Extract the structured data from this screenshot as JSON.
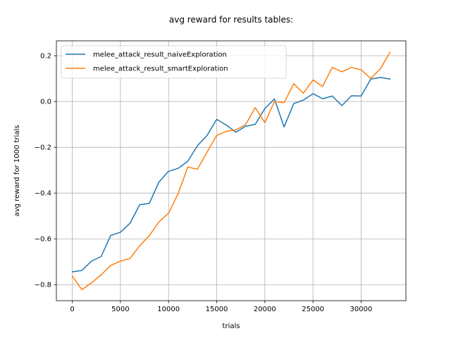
{
  "chart_data": {
    "type": "line",
    "title": "avg reward for results tables:",
    "xlabel": "trials",
    "ylabel": "avg reward for 1000 trials",
    "xlim": [
      -1650,
      34650
    ],
    "ylim": [
      -0.87,
      0.265
    ],
    "xticks": [
      0,
      5000,
      10000,
      15000,
      20000,
      25000,
      30000
    ],
    "xtick_labels": [
      "0",
      "5000",
      "10000",
      "15000",
      "20000",
      "25000",
      "30000"
    ],
    "yticks": [
      -0.8,
      -0.6,
      -0.4,
      -0.2,
      0.0,
      0.2
    ],
    "ytick_labels": [
      "−0.8",
      "−0.6",
      "−0.4",
      "−0.2",
      "0.0",
      "0.2"
    ],
    "grid": true,
    "legend_position": "top-left",
    "x": [
      0,
      1000,
      2000,
      3000,
      4000,
      5000,
      6000,
      7000,
      8000,
      9000,
      10000,
      11000,
      12000,
      13000,
      14000,
      15000,
      16000,
      17000,
      18000,
      19000,
      20000,
      21000,
      22000,
      23000,
      24000,
      25000,
      26000,
      27000,
      28000,
      29000,
      30000,
      31000,
      32000,
      33000
    ],
    "series": [
      {
        "name": "melee_attack_result_naiveExploration",
        "color": "#1f77b4",
        "values": [
          -0.744,
          -0.738,
          -0.697,
          -0.677,
          -0.585,
          -0.571,
          -0.532,
          -0.451,
          -0.445,
          -0.352,
          -0.305,
          -0.292,
          -0.261,
          -0.193,
          -0.148,
          -0.078,
          -0.103,
          -0.134,
          -0.108,
          -0.1,
          -0.031,
          0.011,
          -0.111,
          -0.009,
          0.006,
          0.034,
          0.012,
          0.024,
          -0.018,
          0.025,
          0.024,
          0.098,
          0.105,
          0.098
        ]
      },
      {
        "name": "melee_attack_result_smartExploration",
        "color": "#ff7f0e",
        "values": [
          -0.762,
          -0.822,
          -0.792,
          -0.757,
          -0.716,
          -0.697,
          -0.686,
          -0.63,
          -0.586,
          -0.526,
          -0.488,
          -0.402,
          -0.286,
          -0.296,
          -0.221,
          -0.148,
          -0.13,
          -0.124,
          -0.101,
          -0.027,
          -0.092,
          0.0,
          -0.005,
          0.078,
          0.036,
          0.094,
          0.066,
          0.149,
          0.13,
          0.149,
          0.138,
          0.101,
          0.143,
          0.215
        ]
      }
    ]
  }
}
